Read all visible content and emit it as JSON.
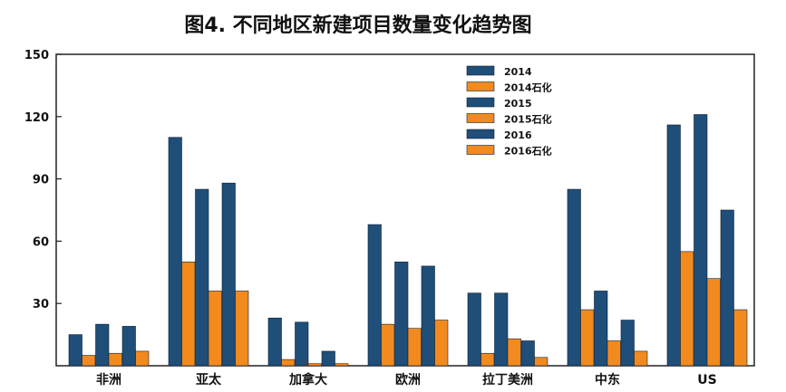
{
  "chart_data": {
    "type": "bar",
    "title": "图4. 不同地区新建项目数量变化趋势图",
    "xlabel": "",
    "ylabel": "",
    "ylim": [
      0,
      150
    ],
    "yticks": [
      30,
      60,
      90,
      120,
      150
    ],
    "grid": false,
    "legend_position": "top-right",
    "categories": [
      "非洲",
      "亚太",
      "加拿大",
      "欧洲",
      "拉丁美洲",
      "中东",
      "US"
    ],
    "series": [
      {
        "name": "2014",
        "color": "#1f4e79",
        "values": [
          15,
          110,
          23,
          68,
          35,
          85,
          116
        ]
      },
      {
        "name": "2014石化",
        "color": "#f28a1e",
        "values": [
          5,
          50,
          3,
          20,
          6,
          27,
          55
        ]
      },
      {
        "name": "2015",
        "color": "#1f4e79",
        "values": [
          20,
          85,
          21,
          50,
          35,
          36,
          121
        ]
      },
      {
        "name": "2015石化",
        "color": "#f28a1e",
        "values": [
          6,
          36,
          1,
          18,
          13,
          12,
          42
        ]
      },
      {
        "name": "2016",
        "color": "#1f4e79",
        "values": [
          19,
          88,
          7,
          48,
          12,
          22,
          75
        ]
      },
      {
        "name": "2016石化",
        "color": "#f28a1e",
        "values": [
          7,
          36,
          1,
          22,
          4,
          7,
          27
        ]
      }
    ]
  }
}
